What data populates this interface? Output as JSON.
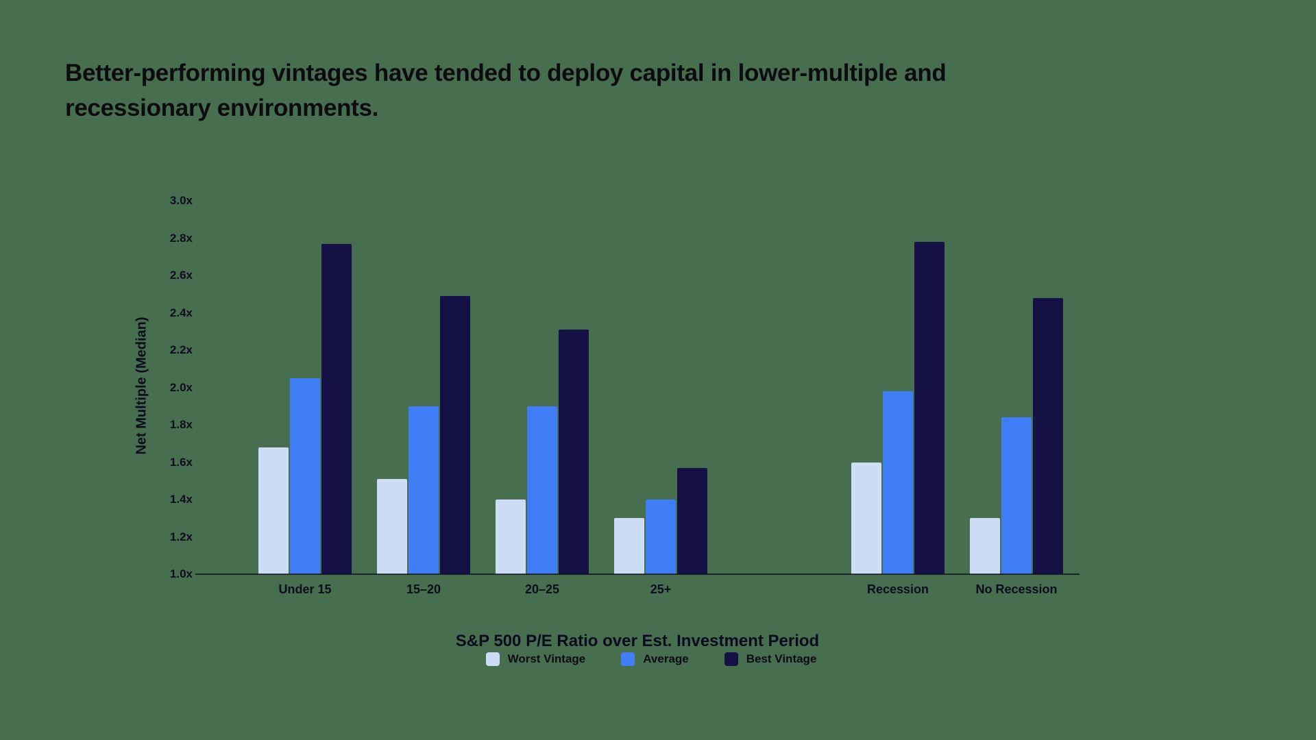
{
  "title": "Better-performing vintages have tended to deploy capital in lower-multiple and recessionary environments.",
  "chart_data": {
    "type": "bar",
    "title": "Better-performing vintages have tended to deploy capital in lower-multiple and recessionary environments.",
    "ylabel": "Net Multiple (Median)",
    "xlabel": "S&P 500 P/E Ratio over Est. Investment Period",
    "ylim": [
      1.0,
      3.0
    ],
    "ytick_step": 0.2,
    "ytick_suffix": "x",
    "grid": false,
    "legend_position": "bottom",
    "categories": [
      "Under 15",
      "15–20",
      "20–25",
      "25+",
      "Recession",
      "No Recession"
    ],
    "cluster_gap_after_index": 3,
    "series": [
      {
        "name": "Worst Vintage",
        "color": "#CEDDF6",
        "values": [
          1.68,
          1.51,
          1.4,
          1.3,
          1.6,
          1.3
        ]
      },
      {
        "name": "Average",
        "color": "#3F7EF7",
        "values": [
          2.05,
          1.9,
          1.9,
          1.4,
          1.98,
          1.84
        ]
      },
      {
        "name": "Best Vintage",
        "color": "#141145",
        "values": [
          2.77,
          2.49,
          2.31,
          1.57,
          2.78,
          2.48
        ]
      }
    ]
  },
  "colors": {
    "background": "#486E50",
    "ink": "#0b0b10",
    "axis_line": "#14141A"
  }
}
